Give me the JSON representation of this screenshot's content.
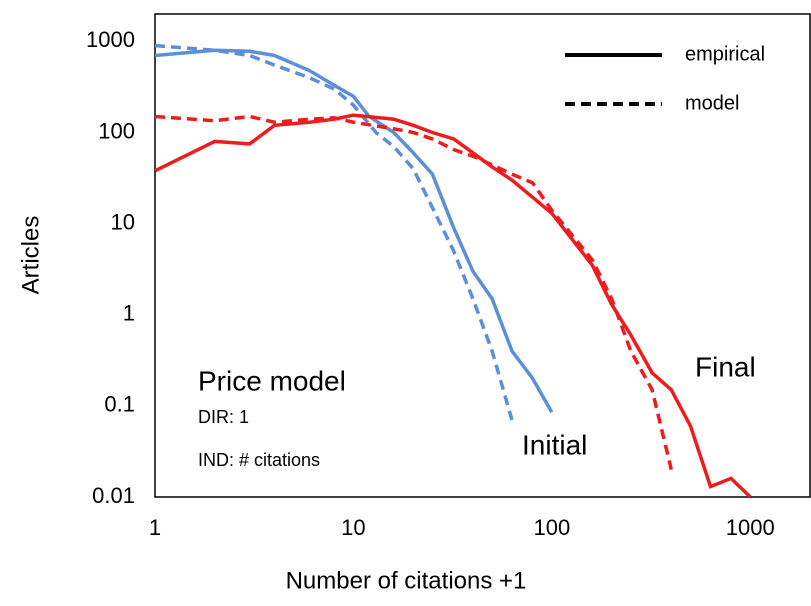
{
  "chart_data": {
    "type": "line",
    "xlabel": "Number of citations +1",
    "ylabel": "Articles",
    "xscale": "log",
    "yscale": "log",
    "xlim": [
      1,
      2000
    ],
    "ylim": [
      0.01,
      2000
    ],
    "xticks": [
      1,
      10,
      100,
      1000
    ],
    "yticks": [
      0.01,
      0.1,
      1,
      10,
      100,
      1000
    ],
    "grid": false,
    "legend": [
      {
        "label": "empirical",
        "dash": "solid"
      },
      {
        "label": "model",
        "dash": "dashed"
      }
    ],
    "legend_position": "upper right",
    "series": [
      {
        "color": "#5b8fd6",
        "dash": "solid",
        "x": [
          1,
          2,
          3,
          4,
          6,
          8,
          10,
          12,
          16,
          20,
          25,
          32,
          40,
          50,
          63,
          80,
          100
        ],
        "values": [
          700,
          800,
          780,
          700,
          480,
          330,
          250,
          150,
          100,
          60,
          35,
          9,
          3,
          1.5,
          0.4,
          0.2,
          0.085
        ]
      },
      {
        "color": "#5b8fd6",
        "dash": "dashed",
        "x": [
          1,
          2,
          3,
          4,
          6,
          8,
          10,
          13,
          16,
          20,
          25,
          32,
          40,
          50,
          63
        ],
        "values": [
          900,
          800,
          700,
          550,
          400,
          300,
          200,
          100,
          70,
          40,
          15,
          5,
          1.5,
          0.4,
          0.07
        ]
      },
      {
        "color": "#ee1c1c",
        "dash": "solid",
        "x": [
          1,
          2,
          3,
          4,
          6,
          8,
          10,
          16,
          20,
          25,
          32,
          40,
          50,
          63,
          100,
          160,
          200,
          250,
          320,
          400,
          500,
          630,
          800,
          1000
        ],
        "values": [
          38,
          80,
          75,
          120,
          130,
          140,
          155,
          140,
          120,
          100,
          85,
          60,
          42,
          30,
          13,
          3.5,
          1.3,
          0.6,
          0.23,
          0.15,
          0.06,
          0.013,
          0.016,
          0.01
        ]
      },
      {
        "color": "#ee1c1c",
        "dash": "dashed",
        "x": [
          1,
          2,
          3,
          4,
          6,
          8,
          10,
          16,
          20,
          25,
          32,
          40,
          63,
          80,
          100,
          160,
          200,
          250,
          320,
          400
        ],
        "values": [
          150,
          135,
          150,
          130,
          140,
          145,
          130,
          110,
          100,
          85,
          65,
          55,
          35,
          28,
          14,
          4,
          1.5,
          0.4,
          0.15,
          0.02
        ]
      }
    ],
    "annotations": [
      {
        "text": "Price model"
      },
      {
        "text": "DIR: 1"
      },
      {
        "text": "IND: # citations"
      },
      {
        "text": "Initial"
      },
      {
        "text": "Final"
      }
    ]
  }
}
